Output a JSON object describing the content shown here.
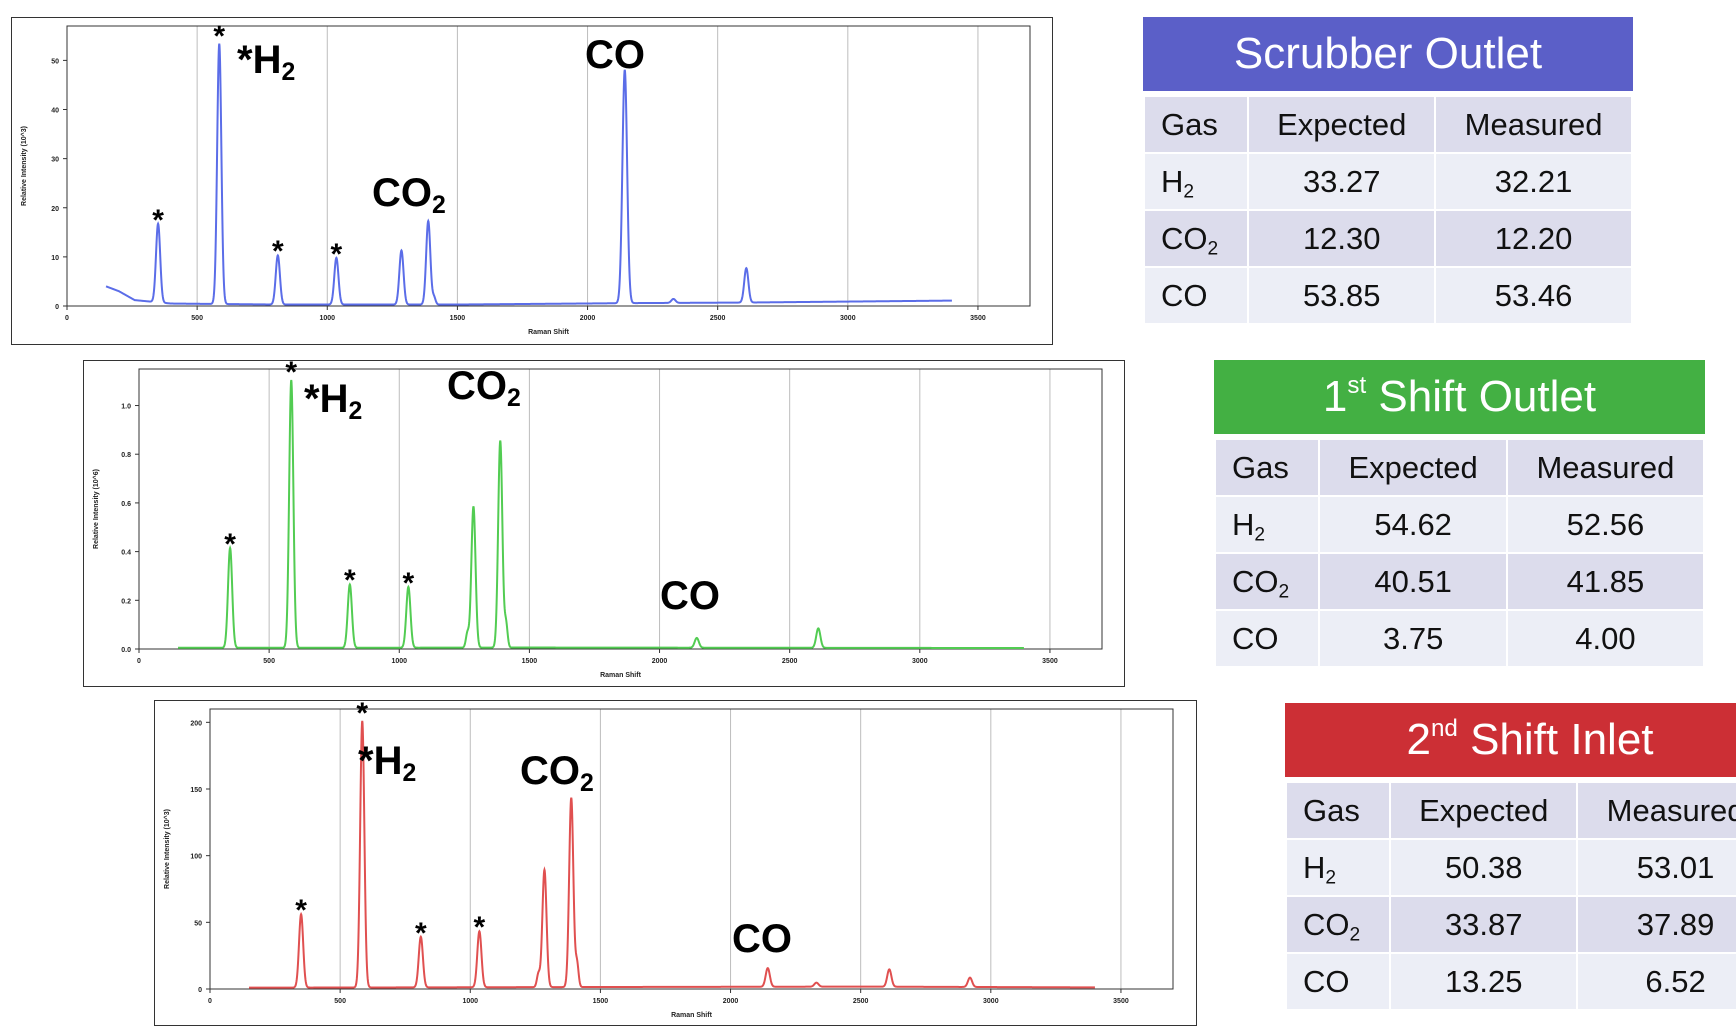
{
  "chart_data": [
    {
      "type": "line",
      "color": "#5b6de8",
      "xlabel": "Raman Shift",
      "ylabel": "Relative Intensity (10^3)",
      "xlim": [
        0,
        3700
      ],
      "ylim": [
        0,
        57
      ],
      "x_ticks": [
        0,
        500,
        1000,
        1500,
        2000,
        2500,
        3000,
        3500
      ],
      "y_ticks": [
        0,
        10,
        20,
        30,
        40,
        50
      ],
      "y_tick_labels": [
        "0",
        "10",
        "20",
        "30",
        "40",
        "50"
      ],
      "baseline": [
        [
          150,
          4
        ],
        [
          200,
          3
        ],
        [
          260,
          1.2
        ],
        [
          400,
          0.5
        ],
        [
          800,
          0.3
        ],
        [
          1500,
          0.3
        ],
        [
          2200,
          0.6
        ],
        [
          2600,
          0.7
        ],
        [
          3000,
          0.9
        ],
        [
          3400,
          1.1
        ]
      ],
      "peaks": [
        {
          "x": 350,
          "y": 16,
          "w": 8
        },
        {
          "x": 585,
          "y": 53,
          "w": 8
        },
        {
          "x": 810,
          "y": 10,
          "w": 8
        },
        {
          "x": 1035,
          "y": 9.5,
          "w": 8
        },
        {
          "x": 1285,
          "y": 11,
          "w": 8
        },
        {
          "x": 1388,
          "y": 17,
          "w": 8
        },
        {
          "x": 1410,
          "y": 1.5,
          "w": 6
        },
        {
          "x": 2143,
          "y": 47.5,
          "w": 9
        },
        {
          "x": 2330,
          "y": 0.8,
          "w": 8
        },
        {
          "x": 2610,
          "y": 7,
          "w": 8
        }
      ],
      "annotations": [
        {
          "label": "*",
          "x": 350
        },
        {
          "label": "*",
          "x": 585
        },
        {
          "label": "*",
          "x": 810
        },
        {
          "label": "*",
          "x": 1035
        },
        {
          "prefix": "*",
          "main": "H",
          "sub": "2"
        },
        {
          "main": "CO",
          "sub": "2"
        },
        {
          "main": "CO",
          "sub": ""
        }
      ]
    },
    {
      "type": "line",
      "color": "#52cc52",
      "xlabel": "Raman Shift",
      "ylabel": "Relative Intensity (10^6)",
      "xlim": [
        0,
        3700
      ],
      "ylim": [
        0,
        1.15
      ],
      "x_ticks": [
        0,
        500,
        1000,
        1500,
        2000,
        2500,
        3000,
        3500
      ],
      "y_ticks": [
        0,
        0.2,
        0.4,
        0.6,
        0.8,
        1.0
      ],
      "y_tick_labels": [
        "0.0",
        "0.2",
        "0.4",
        "0.6",
        "0.8",
        "1.0"
      ],
      "baseline": [
        [
          150,
          0.005
        ],
        [
          800,
          0.005
        ],
        [
          1500,
          0.006
        ],
        [
          3400,
          0.004
        ]
      ],
      "peaks": [
        {
          "x": 350,
          "y": 0.41,
          "w": 8
        },
        {
          "x": 585,
          "y": 1.1,
          "w": 8
        },
        {
          "x": 810,
          "y": 0.26,
          "w": 8
        },
        {
          "x": 1035,
          "y": 0.25,
          "w": 8
        },
        {
          "x": 1262,
          "y": 0.06,
          "w": 6
        },
        {
          "x": 1285,
          "y": 0.58,
          "w": 8
        },
        {
          "x": 1388,
          "y": 0.85,
          "w": 8
        },
        {
          "x": 1410,
          "y": 0.1,
          "w": 6
        },
        {
          "x": 2143,
          "y": 0.04,
          "w": 8
        },
        {
          "x": 2610,
          "y": 0.08,
          "w": 8
        }
      ],
      "annotations": [
        {
          "label": "*",
          "x": 350
        },
        {
          "label": "*",
          "x": 585
        },
        {
          "label": "*",
          "x": 810
        },
        {
          "label": "*",
          "x": 1035
        },
        {
          "prefix": "*",
          "main": "H",
          "sub": "2"
        },
        {
          "main": "CO",
          "sub": "2"
        },
        {
          "main": "CO",
          "sub": ""
        }
      ]
    },
    {
      "type": "line",
      "color": "#e05050",
      "xlabel": "Raman Shift",
      "ylabel": "Relative Intensity (10^3)",
      "xlim": [
        0,
        3700
      ],
      "ylim": [
        0,
        210
      ],
      "x_ticks": [
        0,
        500,
        1000,
        1500,
        2000,
        2500,
        3000,
        3500
      ],
      "y_ticks": [
        0,
        50,
        100,
        150,
        200
      ],
      "y_tick_labels": [
        "0",
        "50",
        "100",
        "150",
        "200"
      ],
      "baseline": [
        [
          150,
          1
        ],
        [
          800,
          1.2
        ],
        [
          1500,
          1.5
        ],
        [
          2500,
          1.8
        ],
        [
          3400,
          1.2
        ]
      ],
      "peaks": [
        {
          "x": 350,
          "y": 55,
          "w": 8
        },
        {
          "x": 585,
          "y": 200,
          "w": 8
        },
        {
          "x": 810,
          "y": 38,
          "w": 8
        },
        {
          "x": 1035,
          "y": 42,
          "w": 8
        },
        {
          "x": 1262,
          "y": 10,
          "w": 6
        },
        {
          "x": 1285,
          "y": 88,
          "w": 8
        },
        {
          "x": 1388,
          "y": 142,
          "w": 8
        },
        {
          "x": 1410,
          "y": 18,
          "w": 6
        },
        {
          "x": 2143,
          "y": 14,
          "w": 8
        },
        {
          "x": 2330,
          "y": 3,
          "w": 8
        },
        {
          "x": 2610,
          "y": 13,
          "w": 8
        },
        {
          "x": 2920,
          "y": 7,
          "w": 8
        }
      ],
      "annotations": [
        {
          "label": "*",
          "x": 350
        },
        {
          "label": "*",
          "x": 585
        },
        {
          "label": "*",
          "x": 810
        },
        {
          "label": "*",
          "x": 1035
        },
        {
          "prefix": "*",
          "main": "H",
          "sub": "2"
        },
        {
          "main": "CO",
          "sub": "2"
        },
        {
          "main": "CO",
          "sub": ""
        }
      ]
    }
  ],
  "tables": [
    {
      "title": "Scrubber Outlet",
      "title_sup": "",
      "title_rest": "",
      "header_color": "#5b5fc8",
      "headers": [
        "Gas",
        "Expected",
        "Measured"
      ],
      "rows": [
        {
          "gas": "H",
          "sub": "2",
          "expected": "33.27",
          "measured": "32.21"
        },
        {
          "gas": "CO",
          "sub": "2",
          "expected": "12.30",
          "measured": "12.20"
        },
        {
          "gas": "CO",
          "sub": "",
          "expected": "53.85",
          "measured": "53.46"
        }
      ]
    },
    {
      "title": "1",
      "title_sup": "st",
      "title_rest": " Shift Outlet",
      "header_color": "#43b043",
      "headers": [
        "Gas",
        "Expected",
        "Measured"
      ],
      "rows": [
        {
          "gas": "H",
          "sub": "2",
          "expected": "54.62",
          "measured": "52.56"
        },
        {
          "gas": "CO",
          "sub": "2",
          "expected": "40.51",
          "measured": "41.85"
        },
        {
          "gas": "CO",
          "sub": "",
          "expected": "3.75",
          "measured": "4.00"
        }
      ]
    },
    {
      "title": "2",
      "title_sup": "nd",
      "title_rest": " Shift Inlet",
      "header_color": "#cc2f35",
      "headers": [
        "Gas",
        "Expected",
        "Measured"
      ],
      "rows": [
        {
          "gas": "H",
          "sub": "2",
          "expected": "50.38",
          "measured": "53.01"
        },
        {
          "gas": "CO",
          "sub": "2",
          "expected": "33.87",
          "measured": "37.89"
        },
        {
          "gas": "CO",
          "sub": "",
          "expected": "13.25",
          "measured": "6.52"
        }
      ]
    }
  ]
}
